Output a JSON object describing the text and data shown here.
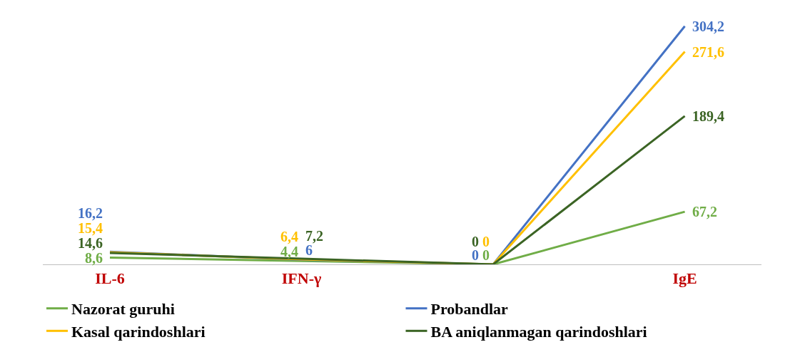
{
  "chart_data": {
    "type": "line",
    "categories": [
      "IL-6",
      "IFN-γ",
      null,
      "IgE"
    ],
    "tick_labels": "x",
    "series": [
      {
        "name": "Nazorat guruhi",
        "color": "#70ad47",
        "values": [
          8.6,
          4.4,
          0,
          67.2
        ],
        "value_labels": [
          "8,6",
          "4,4",
          "0",
          "67,2"
        ]
      },
      {
        "name": "Probandlar",
        "color": "#4472c4",
        "values": [
          16.2,
          6,
          0,
          304.2
        ],
        "value_labels": [
          "16,2",
          "6",
          "0",
          "304,2"
        ]
      },
      {
        "name": "Kasal qarindoshlari",
        "color": "#ffc000",
        "values": [
          15.4,
          6.4,
          0,
          271.6
        ],
        "value_labels": [
          "15,4",
          "6,4",
          "0",
          "271,6"
        ]
      },
      {
        "name": "BA aniqlanmagan qarindoshlari",
        "color": "#3b6424",
        "values": [
          14.6,
          7.2,
          0,
          189.4
        ],
        "value_labels": [
          "14,6",
          "7,2",
          "0",
          "189,4"
        ]
      }
    ],
    "legend": "bottom",
    "marker": "none",
    "line_style": "solid"
  }
}
